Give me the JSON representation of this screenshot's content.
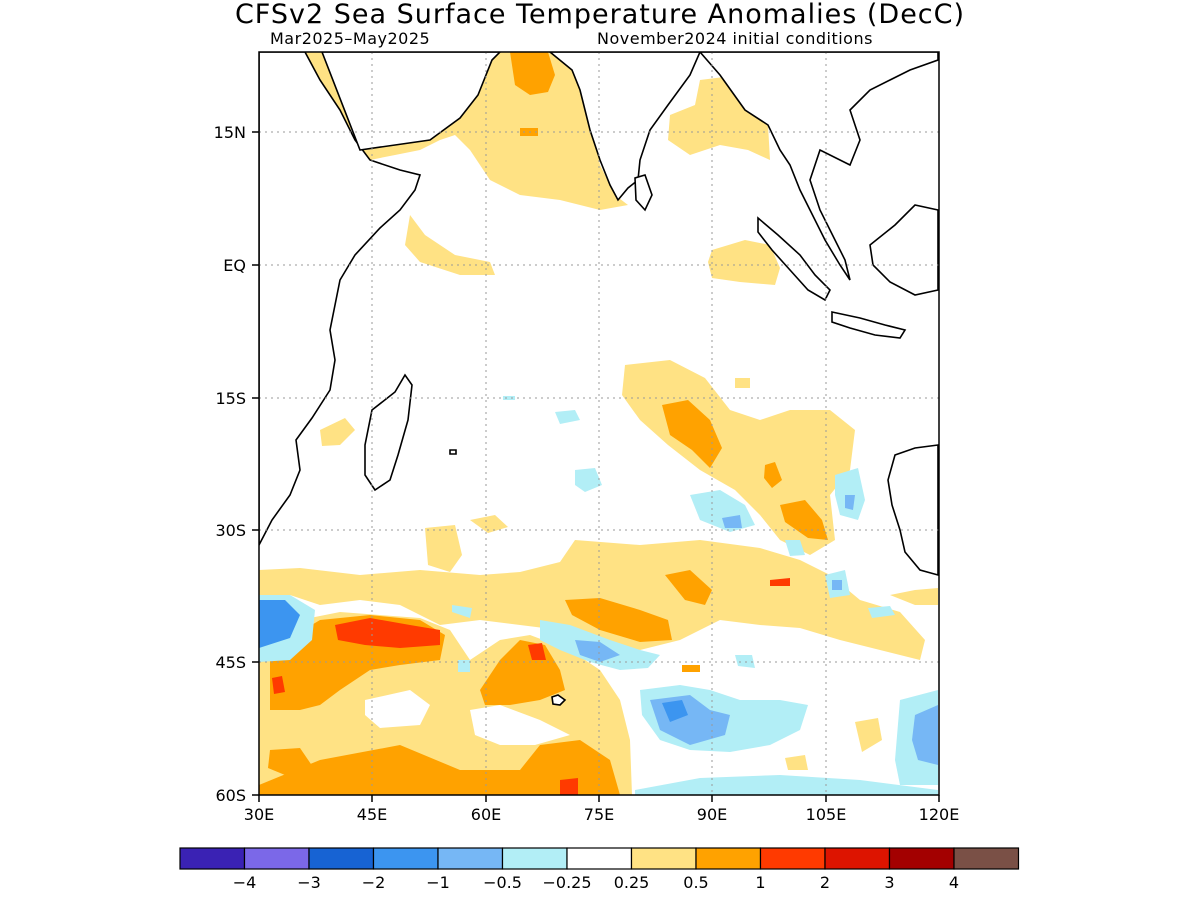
{
  "header": {
    "title": "CFSv2 Sea Surface Temperature Anomalies (DecC)",
    "period": "Mar2025–May2025",
    "init": "November2024 initial conditions"
  },
  "map": {
    "lat_range": [
      -60,
      23
    ],
    "lon_range": [
      30,
      120
    ],
    "lat_ticks": [
      {
        "value": 15,
        "label": "15N"
      },
      {
        "value": 0,
        "label": "EQ"
      },
      {
        "value": -15,
        "label": "15S"
      },
      {
        "value": -30,
        "label": "30S"
      },
      {
        "value": -45,
        "label": "45S"
      },
      {
        "value": -60,
        "label": "60S"
      }
    ],
    "lon_ticks": [
      {
        "value": 30,
        "label": "30E"
      },
      {
        "value": 45,
        "label": "45E"
      },
      {
        "value": 60,
        "label": "60E"
      },
      {
        "value": 75,
        "label": "75E"
      },
      {
        "value": 90,
        "label": "90E"
      },
      {
        "value": 105,
        "label": "105E"
      },
      {
        "value": 120,
        "label": "120E"
      }
    ],
    "gridlines": "dotted"
  },
  "colorbar": {
    "colors": [
      "#3a22b4",
      "#7b68e8",
      "#1763d3",
      "#3c95f0",
      "#76b7f5",
      "#b2eef6",
      "#ffffff",
      "#ffe284",
      "#ffa200",
      "#ff3a00",
      "#dd1400",
      "#a30000",
      "#7a5046"
    ],
    "labels": [
      "−4",
      "−3",
      "−2",
      "−1",
      "−0.5",
      "−0.25",
      "0.25",
      "0.5",
      "1",
      "2",
      "3",
      "4"
    ]
  }
}
